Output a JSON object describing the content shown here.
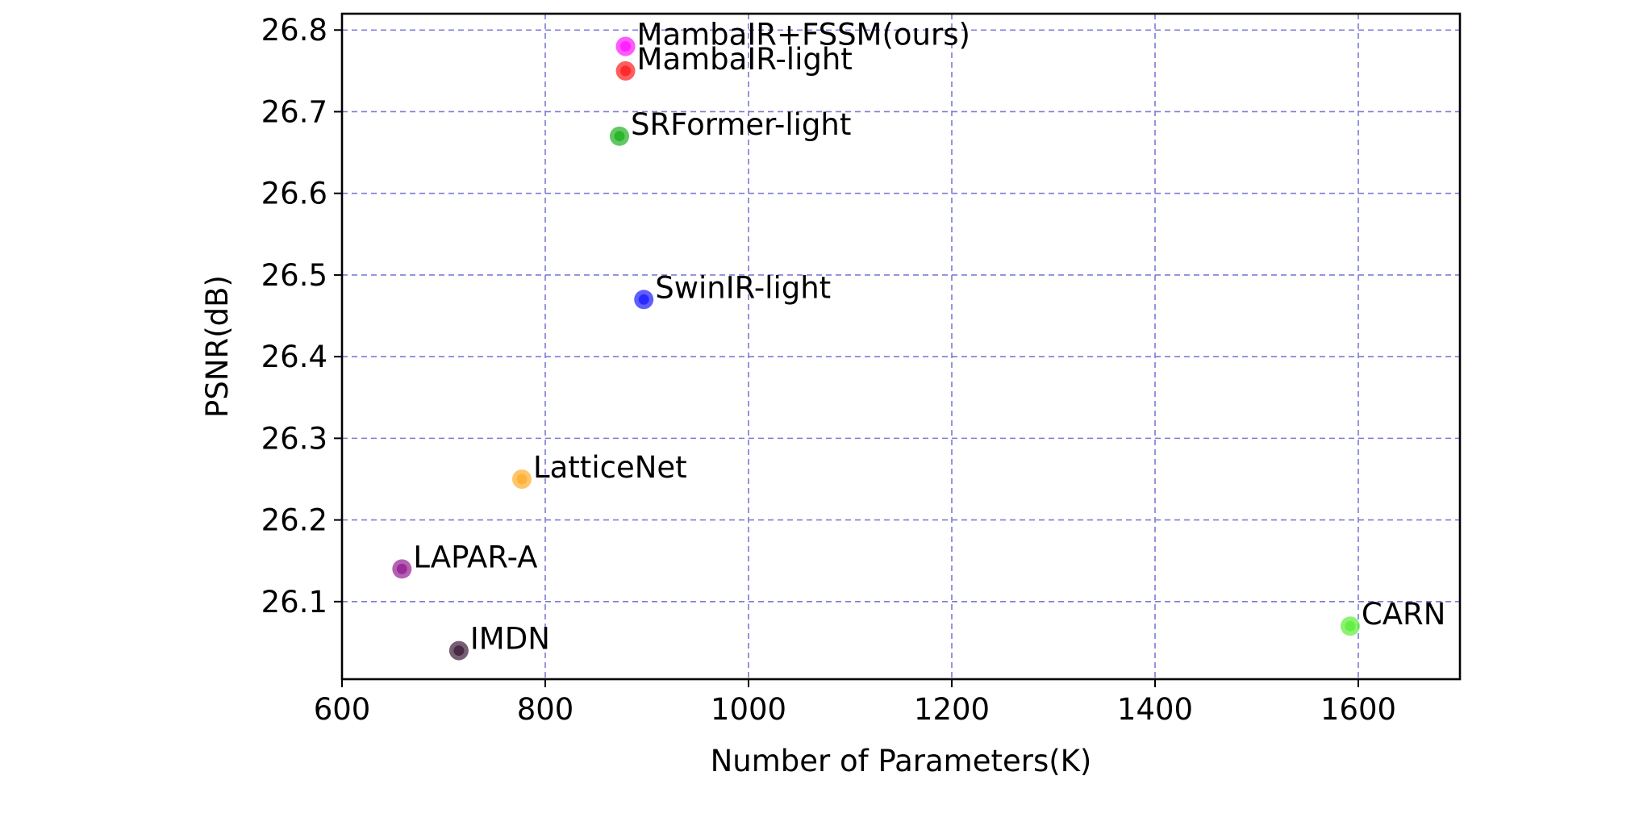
{
  "chart_data": {
    "type": "scatter",
    "title": "",
    "xlabel": "Number of Parameters(K)",
    "ylabel": "PSNR(dB)",
    "xlim": [
      600,
      1700
    ],
    "ylim": [
      26.005,
      26.82
    ],
    "xticks": [
      600,
      800,
      1000,
      1200,
      1400,
      1600
    ],
    "xtick_labels": [
      "600",
      "800",
      "1000",
      "1200",
      "1400",
      "1600"
    ],
    "yticks": [
      26.1,
      26.2,
      26.3,
      26.4,
      26.5,
      26.6,
      26.7,
      26.8
    ],
    "ytick_labels": [
      "26.1",
      "26.2",
      "26.3",
      "26.4",
      "26.5",
      "26.6",
      "26.7",
      "26.8"
    ],
    "grid": true,
    "grid_style": "dashed",
    "grid_color": "#7b7bd6",
    "points": [
      {
        "label": "MambaIR+FSSM(ours)",
        "x": 879,
        "y": 26.78,
        "color": "#ff22ff"
      },
      {
        "label": "MambaIR-light",
        "x": 879,
        "y": 26.75,
        "color": "#ff2a2a"
      },
      {
        "label": "SRFormer-light",
        "x": 873,
        "y": 26.67,
        "color": "#2db52d"
      },
      {
        "label": "SwinIR-light",
        "x": 897,
        "y": 26.47,
        "color": "#2a2aff"
      },
      {
        "label": "LatticeNet",
        "x": 777,
        "y": 26.25,
        "color": "#ffb23a"
      },
      {
        "label": "LAPAR-A",
        "x": 659,
        "y": 26.14,
        "color": "#9a2c9a"
      },
      {
        "label": "IMDN",
        "x": 715,
        "y": 26.04,
        "color": "#4a2a44"
      },
      {
        "label": "CARN",
        "x": 1592,
        "y": 26.07,
        "color": "#66ee44"
      }
    ]
  }
}
